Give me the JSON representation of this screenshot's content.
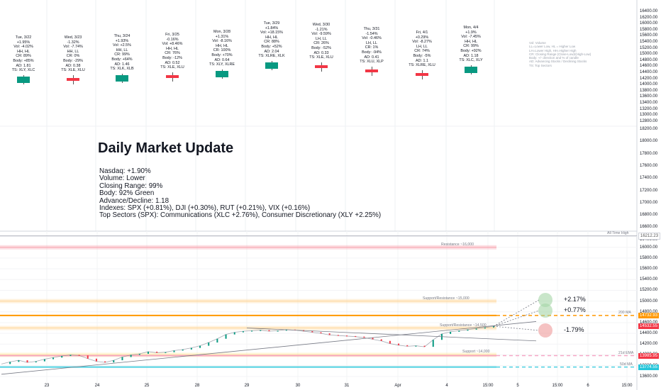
{
  "title": "Daily Market Update",
  "stats": [
    "Nasdaq: +1.90%",
    "Volume: Lower",
    "Closing Range: 99%",
    "Body: 92% Green",
    "Advance/Decline: 1.18",
    "Indexes: SPX (+0.81%), DJI (+0.30%), RUT (+0.21%), VIX (+0.16%)",
    "Top Sectors (SPX): Communications (XLC +2.76%), Consumer Discretionary (XLY +2.25%)"
  ],
  "legend": [
    "Vol: Volume",
    "LL=Lower Low, HL = Higher Low",
    "LH=Lower High, HH=Higher High",
    "CR: Closing Range (Close-Low)/(High-Low)",
    "Body: +/- direction and % of candle",
    "AD: Advancing Stocks / Declining Stocks",
    "TS: Top Sectors"
  ],
  "day_cards": [
    {
      "lines": [
        "Tue, 3/22",
        "+1.95%",
        "Vol: -4.02%",
        "HH, HL",
        "CR: 89%",
        "Body: +85%",
        "AD: 1.81",
        "TS: XLY, XLC"
      ],
      "color": "#089981",
      "direction": "up"
    },
    {
      "lines": [
        "Wed, 3/23",
        "-1.32%",
        "Vol: -7.74%",
        "HH, LL",
        "CR: 0%",
        "Body: -29%",
        "AD: 0.38",
        "TS: XLE, XLU"
      ],
      "color": "#f23645",
      "direction": "down"
    },
    {
      "lines": [
        "Thu, 3/24",
        "+1.93%",
        "Vol: +2.5%",
        "HH, LL",
        "CR: 99%",
        "Body: +64%",
        "AD: 1.46",
        "TS: XLK, XLB"
      ],
      "color": "#089981",
      "direction": "up"
    },
    {
      "lines": [
        "Fri, 3/25",
        "-0.16%",
        "Vol: +8.46%",
        "HH, HL",
        "CR: 76%",
        "Body: -12%",
        "AD: 0.52",
        "TS: XLE, XLU"
      ],
      "color": "#f23645",
      "direction": "down"
    },
    {
      "lines": [
        "Mon, 3/28",
        "+1.31%",
        "Vol: -8.16%",
        "HH, HL",
        "CR: 100%",
        "Body: +70%",
        "AD: 0.64",
        "TS: XLY, XLRE"
      ],
      "color": "#089981",
      "direction": "up"
    },
    {
      "lines": [
        "Tue, 3/29",
        "+1.84%",
        "Vol: +18.15%",
        "HH, HL",
        "CR: 88%",
        "Body: +52%",
        "AD: 2.04",
        "TS: XLRE, XLK"
      ],
      "color": "#089981",
      "direction": "up"
    },
    {
      "lines": [
        "Wed, 3/30",
        "-1.21%",
        "Vol: -9.59%",
        "LH, LL",
        "CR: 26%",
        "Body: -52%",
        "AD: 0.33",
        "TS: XLE, XLU"
      ],
      "color": "#f23645",
      "direction": "down"
    },
    {
      "lines": [
        "Thu, 3/31",
        "-1.54%",
        "Vol: -0.46%",
        "LH, LL",
        "CR: 1%",
        "Body: -94%",
        "AD: 0.41",
        "TS: XLU, XLP"
      ],
      "color": "#f23645",
      "direction": "down"
    },
    {
      "lines": [
        "Fri, 4/1",
        "+0.29%",
        "Vol: -8.27%",
        "LH, LL",
        "CR: 74%",
        "Body: -5%",
        "AD: 1.1",
        "TS: XLRE, XLU"
      ],
      "color": "#f23645",
      "direction": "down"
    },
    {
      "lines": [
        "Mon, 4/4",
        "+1.9%",
        "Vol: -7.45%",
        "HH, HL",
        "CR: 99%",
        "Body: +92%",
        "AD: 1.18",
        "TS: XLC, XLY"
      ],
      "color": "#089981",
      "direction": "up"
    }
  ],
  "top_axis_ticks": [
    "16400.00",
    "16200.00",
    "16000.00",
    "15800.00",
    "15600.00",
    "15400.00",
    "15200.00",
    "15000.00",
    "14800.00",
    "14600.00",
    "14400.00",
    "14200.00",
    "14000.00",
    "13800.00",
    "13600.00",
    "13400.00",
    "13200.00",
    "13000.00",
    "12800.00"
  ],
  "middle_axis_ticks": [
    "18200.00",
    "18000.00",
    "17800.00",
    "17600.00",
    "17400.00",
    "17200.00",
    "17000.00",
    "16800.00",
    "16600.00",
    "16400.00"
  ],
  "chart_data": {
    "type": "line",
    "instrument": "Nasdaq intraday",
    "ylim": [
      13400,
      16300
    ],
    "y_ticks": [
      16200,
      16000,
      15800,
      15600,
      15400,
      15200,
      15000,
      14800,
      14600,
      14400,
      14200,
      14000,
      13800,
      13600
    ],
    "x_ticks": [
      "23",
      "24",
      "25",
      "28",
      "29",
      "30",
      "31",
      "Apr",
      "4",
      "15:00",
      "5",
      "15:00",
      "6",
      "15:00"
    ],
    "price_path": [
      13830,
      13870,
      13900,
      13860,
      13880,
      13920,
      13950,
      13980,
      14000,
      13990,
      13930,
      13880,
      13860,
      13900,
      13960,
      14000,
      14020,
      14060,
      14040,
      14050,
      14080,
      14100,
      14130,
      14170,
      14230,
      14300,
      14380,
      14420,
      14440,
      14450,
      14460,
      14440,
      14450,
      14470,
      14460,
      14440,
      14420,
      14400,
      14370,
      14360,
      14350,
      14340,
      14320,
      14290,
      14260,
      14210,
      14180,
      14160,
      14170,
      14150,
      14280,
      14390,
      14430,
      14450,
      14470,
      14490,
      14510,
      14532
    ],
    "levels": [
      {
        "label": "All Time High",
        "value": 16212.23,
        "color": "#b2b5be"
      },
      {
        "label": "Resistance ~16,000",
        "value": 16000,
        "color": "#f7a1ab"
      },
      {
        "label": "Support/Resistance ~15,000",
        "value": 15000,
        "color": "#ffd699"
      },
      {
        "label": "200 MA",
        "value": 14732.93,
        "color": "#ff9800"
      },
      {
        "label": "Support/Resistance ~14,500",
        "value": 14500,
        "color": "#ffd699"
      },
      {
        "label": "Support ~14,000",
        "value": 14000,
        "color": "#ffe082"
      },
      {
        "label": "21d EMA",
        "value": 13985.95,
        "color": "#f7a8c8"
      },
      {
        "label": "50d MA",
        "value": 13774.55,
        "color": "#4dd0e1"
      }
    ],
    "scenarios": [
      {
        "label": "+2.17%",
        "color": "#a5d6a7"
      },
      {
        "label": "+0.77%",
        "color": "#a5d6a7"
      },
      {
        "label": "-1.79%",
        "color": "#ef9a9a"
      }
    ],
    "price_tags": [
      {
        "label": "16212.23",
        "bg": "#ffffff",
        "fg": "#555"
      },
      {
        "label": "14732.93",
        "bg": "#ff9800",
        "fg": "#ffffff"
      },
      {
        "label": "14532.55",
        "bg": "#f23645",
        "fg": "#ffffff"
      },
      {
        "label": "13985.95",
        "bg": "#f23645",
        "fg": "#ffffff"
      },
      {
        "label": "13774.55",
        "bg": "#26c6da",
        "fg": "#ffffff"
      }
    ]
  }
}
